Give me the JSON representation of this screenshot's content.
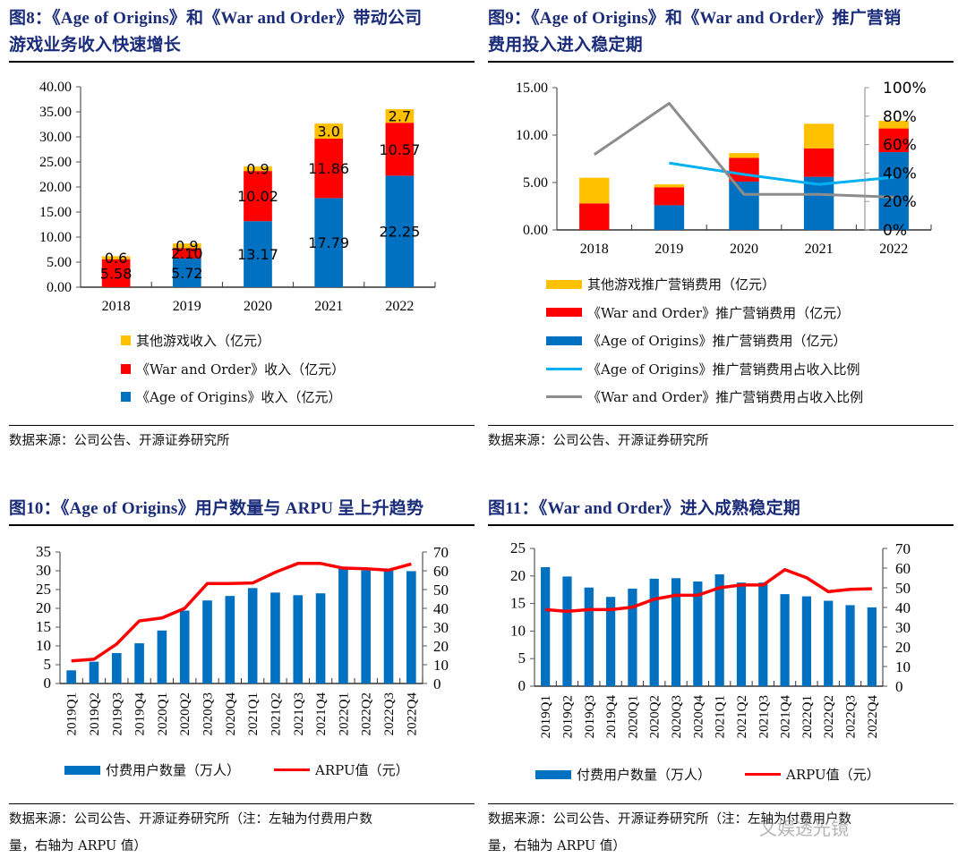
{
  "fig8": {
    "title_line1": "图8：《Age of Origins》和《War and Order》带动公司",
    "title_line2": "游戏业务收入快速增长",
    "source": "数据来源：公司公告、开源证券研究所",
    "legend": [
      {
        "label": "其他游戏收入（亿元）",
        "color": "#FFC000"
      },
      {
        "label": "《War and Order》收入（亿元）",
        "color": "#FF0000"
      },
      {
        "label": "《Age of Origins》收入（亿元）",
        "color": "#0070C0"
      }
    ]
  },
  "fig9": {
    "title_line1": "图9：《Age of Origins》和《War and Order》推广营销",
    "title_line2": "费用投入进入稳定期",
    "source": "数据来源：公司公告、开源证券研究所",
    "legend": [
      {
        "label": "其他游戏推广营销费用（亿元）",
        "color": "#FFC000",
        "kind": "bar"
      },
      {
        "label": "《War and Order》推广营销费用（亿元）",
        "color": "#FF0000",
        "kind": "bar"
      },
      {
        "label": "《Age of Origins》推广营销费用（亿元）",
        "color": "#0070C0",
        "kind": "bar"
      },
      {
        "label": "《Age of Origins》推广营销费用占收入比例",
        "color": "#00B0F0",
        "kind": "line"
      },
      {
        "label": "《War and Order》推广营销费用占收入比例",
        "color": "#8C8C8C",
        "kind": "line"
      }
    ]
  },
  "fig10": {
    "title": "图10：《Age of Origins》用户数量与 ARPU 呈上升趋势",
    "source_line1": "数据来源：公司公告、开源证券研究所（注：左轴为付费用户数",
    "source_line2": "量，右轴为 ARPU 值）",
    "legend": [
      {
        "label": "付费用户数量（万人）",
        "color": "#0070C0",
        "kind": "bar"
      },
      {
        "label": "ARPU值（元）",
        "color": "#FF0000",
        "kind": "line"
      }
    ]
  },
  "fig11": {
    "title": "图11：《War and Order》进入成熟稳定期",
    "source_line1": "数据来源：公司公告、开源证券研究所（注：左轴为付费用户数",
    "source_line2": "量，右轴为 ARPU 值）",
    "legend": [
      {
        "label": "付费用户数量（万人）",
        "color": "#0070C0",
        "kind": "bar"
      },
      {
        "label": "ARPU值（元）",
        "color": "#FF0000",
        "kind": "line"
      }
    ]
  },
  "watermark": "文娱透光镜",
  "chart_data": [
    {
      "id": "fig8",
      "type": "bar",
      "stacked": true,
      "title": "《Age of Origins》和《War and Order》带动公司游戏业务收入快速增长",
      "categories": [
        "2018",
        "2019",
        "2020",
        "2021",
        "2022"
      ],
      "series": [
        {
          "name": "《Age of Origins》收入（亿元）",
          "color": "#0070C0",
          "values": [
            0,
            5.72,
            13.17,
            17.79,
            22.25
          ],
          "labels": [
            "",
            "5.72",
            "13.17",
            "17.79",
            "22.25"
          ]
        },
        {
          "name": "《War and Order》收入（亿元）",
          "color": "#FF0000",
          "values": [
            5.58,
            2.1,
            10.02,
            11.86,
            10.57
          ],
          "labels": [
            "5.58",
            "2.10",
            "10.02",
            "11.86",
            "10.57"
          ]
        },
        {
          "name": "其他游戏收入（亿元）",
          "color": "#FFC000",
          "values": [
            0.6,
            0.9,
            0.9,
            3.0,
            2.7
          ],
          "labels": [
            "0.6",
            "0.9",
            "0.9",
            "3.0",
            "2.7"
          ]
        }
      ],
      "yticks": [
        "0.00",
        "5.00",
        "10.00",
        "15.00",
        "20.00",
        "25.00",
        "30.00",
        "35.00",
        "40.00"
      ],
      "ylim": [
        0,
        40
      ],
      "legend_position": "bottom"
    },
    {
      "id": "fig9",
      "type": "bar",
      "stacked": true,
      "title": "《Age of Origins》和《War and Order》推广营销费用投入进入稳定期",
      "categories": [
        "2018",
        "2019",
        "2020",
        "2021",
        "2022"
      ],
      "series": [
        {
          "name": "《Age of Origins》推广营销费用（亿元）",
          "color": "#0070C0",
          "values": [
            0,
            2.6,
            5.1,
            5.6,
            8.2
          ]
        },
        {
          "name": "《War and Order》推广营销费用（亿元）",
          "color": "#FF0000",
          "values": [
            2.8,
            1.9,
            2.5,
            3.0,
            2.5
          ]
        },
        {
          "name": "其他游戏推广营销费用（亿元）",
          "color": "#FFC000",
          "values": [
            2.7,
            0.3,
            0.5,
            2.6,
            0.8
          ]
        }
      ],
      "lines": [
        {
          "name": "《Age of Origins》推广营销费用占收入比例",
          "color": "#00B0F0",
          "axis": "right",
          "values": [
            null,
            47,
            39,
            32,
            37
          ]
        },
        {
          "name": "《War and Order》推广营销费用占收入比例",
          "color": "#8C8C8C",
          "axis": "right",
          "values": [
            53,
            89,
            25,
            25,
            23
          ]
        }
      ],
      "yticks": [
        "0.00",
        "5.00",
        "10.00",
        "15.00"
      ],
      "ylim": [
        0,
        15
      ],
      "y2ticks": [
        "0%",
        "20%",
        "40%",
        "60%",
        "80%",
        "100%"
      ],
      "y2lim": [
        0,
        100
      ],
      "legend_position": "bottom"
    },
    {
      "id": "fig10",
      "type": "bar",
      "title": "《Age of Origins》用户数量与 ARPU 呈上升趋势",
      "categories": [
        "2019Q1",
        "2019Q2",
        "2019Q3",
        "2019Q4",
        "2020Q1",
        "2020Q2",
        "2020Q3",
        "2020Q4",
        "2021Q1",
        "2021Q2",
        "2021Q3",
        "2021Q4",
        "2022Q1",
        "2022Q2",
        "2022Q3",
        "2022Q4"
      ],
      "series": [
        {
          "name": "付费用户数量（万人）",
          "color": "#0070C0",
          "axis": "left",
          "values": [
            3.5,
            5.8,
            8.1,
            10.7,
            14.1,
            19.4,
            22.1,
            23.3,
            25.4,
            24.2,
            23.5,
            24.0,
            30.8,
            30.1,
            30.4,
            29.9
          ]
        }
      ],
      "lines": [
        {
          "name": "ARPU值（元）",
          "color": "#FF0000",
          "axis": "right",
          "values": [
            12.0,
            12.9,
            21.0,
            33.3,
            34.9,
            40.0,
            53.2,
            53.2,
            53.5,
            59.2,
            63.9,
            63.9,
            61.4,
            61.1,
            60.3,
            63.6
          ]
        }
      ],
      "yticks": [
        "0",
        "5",
        "10",
        "15",
        "20",
        "25",
        "30",
        "35"
      ],
      "ylim": [
        0,
        35
      ],
      "y2ticks": [
        "0",
        "10",
        "20",
        "30",
        "40",
        "50",
        "60",
        "70"
      ],
      "y2lim": [
        0,
        70
      ],
      "legend_position": "bottom"
    },
    {
      "id": "fig11",
      "type": "bar",
      "title": "《War and Order》进入成熟稳定期",
      "categories": [
        "2019Q1",
        "2019Q2",
        "2019Q3",
        "2019Q4",
        "2020Q1",
        "2020Q2",
        "2020Q3",
        "2020Q4",
        "2021Q1",
        "2021Q2",
        "2021Q3",
        "2021Q4",
        "2022Q1",
        "2022Q2",
        "2022Q3",
        "2022Q4"
      ],
      "series": [
        {
          "name": "付费用户数量（万人）",
          "color": "#0070C0",
          "axis": "left",
          "values": [
            21.6,
            19.9,
            17.9,
            16.2,
            17.7,
            19.5,
            19.6,
            19.0,
            20.3,
            18.8,
            18.8,
            16.7,
            16.3,
            15.5,
            14.7,
            14.3
          ]
        }
      ],
      "lines": [
        {
          "name": "ARPU值（元）",
          "color": "#FF0000",
          "axis": "right",
          "values": [
            38.9,
            38.0,
            38.9,
            38.9,
            40.1,
            44.2,
            46.2,
            46.2,
            50.0,
            51.4,
            51.4,
            59.2,
            55.1,
            48.0,
            49.2,
            49.5
          ]
        }
      ],
      "yticks": [
        "0",
        "5",
        "10",
        "15",
        "20",
        "25"
      ],
      "ylim": [
        0,
        25
      ],
      "y2ticks": [
        "0",
        "10",
        "20",
        "30",
        "40",
        "50",
        "60",
        "70"
      ],
      "y2lim": [
        0,
        70
      ],
      "legend_position": "bottom"
    }
  ]
}
